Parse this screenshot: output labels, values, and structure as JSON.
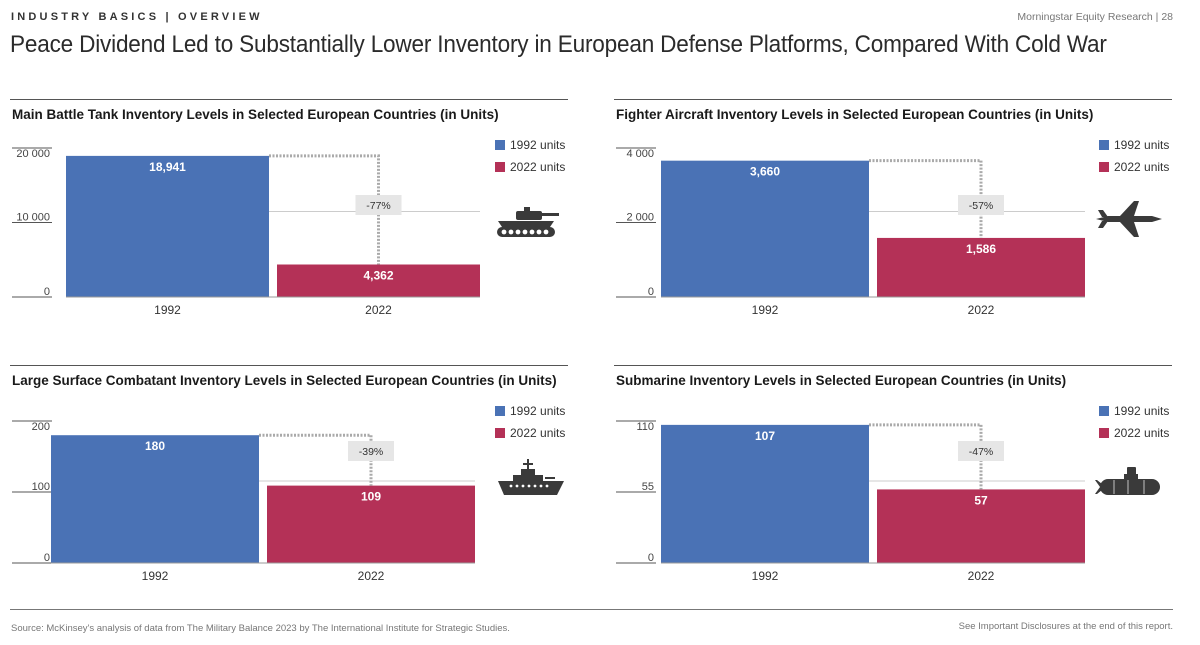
{
  "header": {
    "section": "INDUSTRY BASICS | OVERVIEW",
    "publisher": "Morningstar Equity Research | 28",
    "title": "Peace Dividend Led to Substantially Lower Inventory in European Defense Platforms, Compared With Cold War"
  },
  "colors": {
    "y1992": "#4a72b5",
    "y2022": "#b43157",
    "grid": "#cccccc",
    "connector": "#aaaaaa",
    "change_box": "#e6e6e6",
    "icon": "#3a3a3a"
  },
  "chart_data": [
    {
      "type": "bar",
      "title": "Main Battle Tank Inventory Levels in Selected European Countries (in Units)",
      "categories": [
        "1992",
        "2022"
      ],
      "series": [
        {
          "name": "units",
          "values": [
            18941,
            4362
          ]
        }
      ],
      "value_labels": [
        "18,941",
        "4,362"
      ],
      "yticks": [
        0,
        10000,
        20000
      ],
      "ytick_labels": [
        "0",
        "10 000",
        "20 000"
      ],
      "ylim": [
        0,
        20000
      ],
      "change_label": "-77%",
      "legend": [
        "1992 units",
        "2022 units"
      ],
      "icon": "tank-icon"
    },
    {
      "type": "bar",
      "title": "Fighter Aircraft Inventory Levels in Selected European Countries (in Units)",
      "categories": [
        "1992",
        "2022"
      ],
      "series": [
        {
          "name": "units",
          "values": [
            3660,
            1586
          ]
        }
      ],
      "value_labels": [
        "3,660",
        "1,586"
      ],
      "yticks": [
        0,
        2000,
        4000
      ],
      "ytick_labels": [
        "0",
        "2 000",
        "4 000"
      ],
      "ylim": [
        0,
        4000
      ],
      "change_label": "-57%",
      "legend": [
        "1992 units",
        "2022 units"
      ],
      "icon": "fighter-jet-icon"
    },
    {
      "type": "bar",
      "title": "Large Surface Combatant Inventory Levels in Selected European Countries (in Units)",
      "categories": [
        "1992",
        "2022"
      ],
      "series": [
        {
          "name": "units",
          "values": [
            180,
            109
          ]
        }
      ],
      "value_labels": [
        "180",
        "109"
      ],
      "yticks": [
        0,
        100,
        200
      ],
      "ytick_labels": [
        "0",
        "100",
        "200"
      ],
      "ylim": [
        0,
        200
      ],
      "change_label": "-39%",
      "legend": [
        "1992 units",
        "2022 units"
      ],
      "icon": "warship-icon"
    },
    {
      "type": "bar",
      "title": "Submarine Inventory Levels in Selected European Countries (in Units)",
      "categories": [
        "1992",
        "2022"
      ],
      "series": [
        {
          "name": "units",
          "values": [
            107,
            57
          ]
        }
      ],
      "value_labels": [
        "107",
        "57"
      ],
      "yticks": [
        0,
        55,
        110
      ],
      "ytick_labels": [
        "0",
        "55",
        "110"
      ],
      "ylim": [
        0,
        110
      ],
      "change_label": "-47%",
      "legend": [
        "1992 units",
        "2022 units"
      ],
      "icon": "submarine-icon"
    }
  ],
  "footer": {
    "source": "Source: McKinsey's analysis of data from The Military Balance 2023 by The International Institute for Strategic Studies.",
    "disclosure": "See Important Disclosures at the end of this report."
  }
}
